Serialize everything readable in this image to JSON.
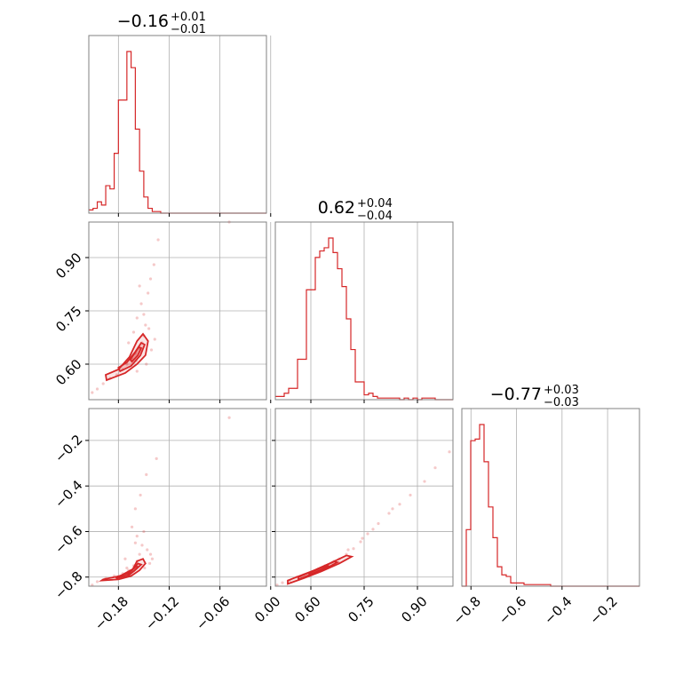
{
  "chart_data": {
    "type": "corner",
    "colors": {
      "line": "#d62728",
      "grid": "#b0b0b0",
      "frame": "#808080"
    },
    "titles": [
      {
        "main": "−0.16",
        "sup": "+0.01",
        "sub": "−0.01"
      },
      {
        "main": "0.62",
        "sup": "+0.04",
        "sub": "−0.04"
      },
      {
        "main": "−0.77",
        "sup": "+0.03",
        "sub": "−0.03"
      }
    ],
    "params": [
      {
        "range": [
          -0.215,
          -0.005
        ],
        "ticks": [
          -0.18,
          -0.12,
          -0.06,
          0.0
        ],
        "tick_labels": [
          "−0.18",
          "−0.12",
          "−0.06",
          "0.00"
        ]
      },
      {
        "range": [
          0.5,
          1.0
        ],
        "ticks": [
          0.6,
          0.75,
          0.9
        ],
        "tick_labels": [
          "0.60",
          "0.75",
          "0.90"
        ]
      },
      {
        "range": [
          -0.84,
          -0.06
        ],
        "ticks": [
          -0.8,
          -0.6,
          -0.4,
          -0.2
        ],
        "tick_labels": [
          "−0.8",
          "−0.6",
          "−0.4",
          "−0.2"
        ]
      }
    ],
    "hist": [
      {
        "lo": -0.215,
        "hi": -0.005,
        "counts": [
          2,
          3,
          7,
          5,
          17,
          15,
          37,
          70,
          70,
          100,
          90,
          52,
          26,
          10,
          3,
          1,
          1,
          0,
          0,
          0,
          0,
          0,
          0,
          0,
          0,
          0,
          0,
          0,
          0,
          0,
          0,
          0,
          0,
          0,
          0,
          0,
          0,
          0,
          0,
          0,
          0,
          0
        ]
      },
      {
        "lo": 0.5,
        "hi": 1.0,
        "counts": [
          2,
          2,
          4,
          7,
          7,
          25,
          25,
          68,
          68,
          88,
          92,
          94,
          100,
          91,
          81,
          70,
          50,
          31,
          11,
          11,
          3,
          4,
          2,
          1,
          1,
          1,
          1,
          1,
          0,
          1,
          0,
          1,
          0,
          1,
          1,
          1,
          0,
          0,
          0,
          0
        ]
      },
      {
        "lo": -0.84,
        "hi": -0.06,
        "counts": [
          0,
          35,
          90,
          91,
          100,
          77,
          49,
          30,
          12,
          7,
          6,
          2,
          2,
          2,
          1,
          1,
          1,
          1,
          1,
          1,
          0,
          0,
          0,
          0,
          0,
          0,
          0,
          0,
          0,
          0,
          0,
          0,
          0,
          0,
          0,
          0,
          0,
          0,
          0,
          0
        ]
      }
    ],
    "scatter": [
      {
        "pair": [
          0,
          1
        ],
        "points": [
          [
            -0.211,
            0.52
          ],
          [
            -0.205,
            0.53
          ],
          [
            -0.198,
            0.545
          ],
          [
            -0.19,
            0.56
          ],
          [
            -0.182,
            0.57
          ],
          [
            -0.175,
            0.585
          ],
          [
            -0.17,
            0.6
          ],
          [
            -0.164,
            0.615
          ],
          [
            -0.16,
            0.63
          ],
          [
            -0.156,
            0.645
          ],
          [
            -0.152,
            0.66
          ],
          [
            -0.15,
            0.68
          ],
          [
            -0.148,
            0.71
          ],
          [
            -0.15,
            0.74
          ],
          [
            -0.153,
            0.77
          ],
          [
            -0.145,
            0.8
          ],
          [
            -0.142,
            0.84
          ],
          [
            -0.138,
            0.88
          ],
          [
            -0.133,
            0.95
          ],
          [
            -0.155,
            0.82
          ],
          [
            -0.147,
            0.6
          ],
          [
            -0.141,
            0.64
          ],
          [
            -0.144,
            0.7
          ],
          [
            -0.158,
            0.73
          ],
          [
            -0.162,
            0.69
          ],
          [
            -0.168,
            0.66
          ],
          [
            -0.158,
            0.58
          ],
          [
            -0.049,
            1.0
          ],
          [
            -0.137,
            0.67
          ],
          [
            -0.159,
            0.61
          ]
        ],
        "contours": [
          [
            [
              -0.194,
              0.555
            ],
            [
              -0.172,
              0.575
            ],
            [
              -0.158,
              0.6
            ],
            [
              -0.148,
              0.625
            ],
            [
              -0.145,
              0.665
            ],
            [
              -0.151,
              0.685
            ],
            [
              -0.158,
              0.665
            ],
            [
              -0.167,
              0.62
            ],
            [
              -0.18,
              0.585
            ],
            [
              -0.195,
              0.57
            ]
          ],
          [
            [
              -0.178,
              0.58
            ],
            [
              -0.165,
              0.595
            ],
            [
              -0.154,
              0.625
            ],
            [
              -0.149,
              0.655
            ],
            [
              -0.153,
              0.66
            ],
            [
              -0.16,
              0.635
            ],
            [
              -0.17,
              0.605
            ],
            [
              -0.18,
              0.59
            ]
          ],
          [
            [
              -0.164,
              0.607
            ],
            [
              -0.157,
              0.625
            ],
            [
              -0.153,
              0.645
            ],
            [
              -0.156,
              0.648
            ],
            [
              -0.161,
              0.63
            ],
            [
              -0.166,
              0.613
            ]
          ]
        ]
      },
      {
        "pair": [
          0,
          2
        ],
        "points": [
          [
            -0.211,
            -0.835
          ],
          [
            -0.205,
            -0.82
          ],
          [
            -0.195,
            -0.805
          ],
          [
            -0.185,
            -0.795
          ],
          [
            -0.175,
            -0.785
          ],
          [
            -0.168,
            -0.77
          ],
          [
            -0.162,
            -0.75
          ],
          [
            -0.158,
            -0.73
          ],
          [
            -0.155,
            -0.7
          ],
          [
            -0.152,
            -0.66
          ],
          [
            -0.158,
            -0.62
          ],
          [
            -0.164,
            -0.58
          ],
          [
            -0.16,
            -0.5
          ],
          [
            -0.154,
            -0.44
          ],
          [
            -0.147,
            -0.35
          ],
          [
            -0.135,
            -0.28
          ],
          [
            -0.049,
            -0.1
          ],
          [
            -0.143,
            -0.74
          ],
          [
            -0.14,
            -0.72
          ],
          [
            -0.146,
            -0.68
          ],
          [
            -0.15,
            -0.6
          ],
          [
            -0.17,
            -0.76
          ],
          [
            -0.172,
            -0.72
          ],
          [
            -0.149,
            -0.76
          ],
          [
            -0.16,
            -0.65
          ],
          [
            -0.142,
            -0.7
          ]
        ],
        "contours": [
          [
            [
              -0.2,
              -0.815
            ],
            [
              -0.18,
              -0.81
            ],
            [
              -0.165,
              -0.795
            ],
            [
              -0.155,
              -0.77
            ],
            [
              -0.148,
              -0.74
            ],
            [
              -0.151,
              -0.72
            ],
            [
              -0.158,
              -0.73
            ],
            [
              -0.163,
              -0.765
            ],
            [
              -0.178,
              -0.795
            ],
            [
              -0.198,
              -0.81
            ]
          ],
          [
            [
              -0.182,
              -0.805
            ],
            [
              -0.167,
              -0.79
            ],
            [
              -0.159,
              -0.765
            ],
            [
              -0.153,
              -0.745
            ],
            [
              -0.157,
              -0.74
            ],
            [
              -0.161,
              -0.76
            ],
            [
              -0.17,
              -0.785
            ],
            [
              -0.183,
              -0.8
            ]
          ],
          [
            [
              -0.168,
              -0.79
            ],
            [
              -0.161,
              -0.772
            ],
            [
              -0.157,
              -0.755
            ],
            [
              -0.16,
              -0.752
            ],
            [
              -0.164,
              -0.77
            ],
            [
              -0.169,
              -0.785
            ]
          ]
        ]
      },
      {
        "pair": [
          1,
          2
        ],
        "points": [
          [
            0.505,
            -0.835
          ],
          [
            0.52,
            -0.825
          ],
          [
            0.54,
            -0.815
          ],
          [
            0.56,
            -0.8
          ],
          [
            0.58,
            -0.79
          ],
          [
            0.6,
            -0.78
          ],
          [
            0.62,
            -0.765
          ],
          [
            0.64,
            -0.75
          ],
          [
            0.66,
            -0.735
          ],
          [
            0.68,
            -0.72
          ],
          [
            0.7,
            -0.7
          ],
          [
            0.72,
            -0.675
          ],
          [
            0.74,
            -0.645
          ],
          [
            0.76,
            -0.61
          ],
          [
            0.79,
            -0.565
          ],
          [
            0.82,
            -0.52
          ],
          [
            0.85,
            -0.48
          ],
          [
            0.88,
            -0.44
          ],
          [
            0.92,
            -0.38
          ],
          [
            0.95,
            -0.32
          ],
          [
            0.99,
            -0.25
          ],
          [
            0.745,
            -0.63
          ],
          [
            0.705,
            -0.68
          ],
          [
            0.665,
            -0.73
          ],
          [
            0.775,
            -0.59
          ],
          [
            0.83,
            -0.5
          ]
        ],
        "contours": [
          [
            [
              0.535,
              -0.83
            ],
            [
              0.58,
              -0.805
            ],
            [
              0.63,
              -0.775
            ],
            [
              0.68,
              -0.74
            ],
            [
              0.715,
              -0.71
            ],
            [
              0.7,
              -0.705
            ],
            [
              0.66,
              -0.735
            ],
            [
              0.61,
              -0.77
            ],
            [
              0.56,
              -0.8
            ],
            [
              0.535,
              -0.815
            ]
          ],
          [
            [
              0.565,
              -0.81
            ],
            [
              0.605,
              -0.785
            ],
            [
              0.645,
              -0.76
            ],
            [
              0.675,
              -0.735
            ],
            [
              0.665,
              -0.732
            ],
            [
              0.628,
              -0.758
            ],
            [
              0.588,
              -0.785
            ],
            [
              0.565,
              -0.8
            ]
          ],
          [
            [
              0.595,
              -0.79
            ],
            [
              0.625,
              -0.77
            ],
            [
              0.65,
              -0.752
            ],
            [
              0.645,
              -0.748
            ],
            [
              0.62,
              -0.765
            ],
            [
              0.596,
              -0.782
            ]
          ]
        ]
      }
    ]
  }
}
